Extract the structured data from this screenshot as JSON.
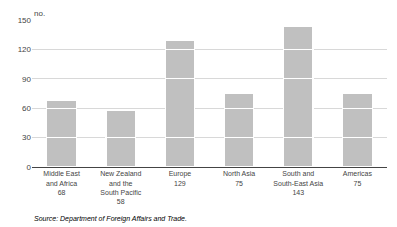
{
  "chart_data": {
    "type": "bar",
    "stacked": true,
    "categories": [
      "Middle East\nand Africa\n68",
      "New Zealand\nand the\nSouth Pacific\n58",
      "Europe\n129",
      "North Asia\n75",
      "South and\nSouth-East Asia\n143",
      "Americas\n75"
    ],
    "series": [
      {
        "color": "#c0c0c0",
        "values": [
          30,
          30,
          30,
          30,
          30,
          30
        ]
      },
      {
        "color": "#c0c0c0",
        "values": [
          30,
          28,
          60,
          30,
          60,
          30
        ]
      },
      {
        "color": "#c0c0c0",
        "values": [
          8,
          0,
          30,
          15,
          30,
          15
        ]
      },
      {
        "color": "#c0c0c0",
        "values": [
          0,
          0,
          9,
          0,
          23,
          0
        ]
      }
    ],
    "ylabel": "no.",
    "annotations": [
      "Source: Department of Foreign Affairs and Trade."
    ],
    "ylim": [
      0,
      150
    ],
    "yticks": [
      0,
      30,
      60,
      90,
      120,
      150
    ],
    "grid": true
  }
}
